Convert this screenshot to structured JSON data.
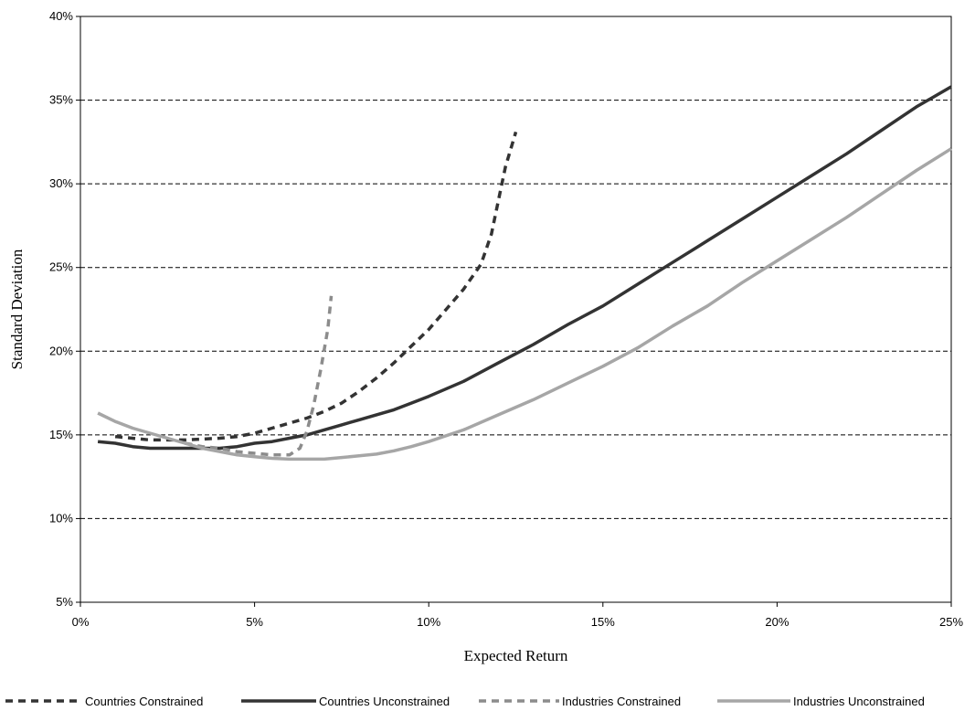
{
  "chart_data": {
    "type": "line",
    "title": "",
    "xlabel": "Expected Return",
    "ylabel": "Standard Deviation",
    "xlim": [
      0,
      25
    ],
    "ylim": [
      5,
      40
    ],
    "xticks": [
      0,
      5,
      10,
      15,
      20,
      25
    ],
    "yticks": [
      5,
      10,
      15,
      20,
      25,
      30,
      35,
      40
    ],
    "xtick_labels": [
      "0%",
      "5%",
      "10%",
      "15%",
      "20%",
      "25%"
    ],
    "ytick_labels": [
      "5%",
      "10%",
      "15%",
      "20%",
      "25%",
      "30%",
      "35%",
      "40%"
    ],
    "grid": "horizontal dashed",
    "legend_position": "bottom",
    "series": [
      {
        "name": "Countries Constrained",
        "color": "#333333",
        "dash": "dashed",
        "x": [
          1.0,
          2.0,
          3.0,
          4.0,
          4.5,
          5.0,
          5.5,
          6.0,
          6.5,
          7.0,
          7.5,
          8.0,
          8.5,
          9.0,
          9.5,
          10.0,
          10.5,
          11.0,
          11.5,
          11.8,
          12.0,
          12.2,
          12.5
        ],
        "values": [
          14.9,
          14.7,
          14.7,
          14.8,
          14.9,
          15.1,
          15.4,
          15.7,
          16.0,
          16.4,
          16.9,
          17.6,
          18.4,
          19.3,
          20.3,
          21.3,
          22.5,
          23.7,
          25.2,
          27.0,
          29.0,
          31.0,
          33.1
        ]
      },
      {
        "name": "Countries Unconstrained",
        "color": "#333333",
        "dash": "solid",
        "x": [
          0.5,
          1.0,
          1.5,
          2.0,
          2.5,
          3.0,
          3.5,
          4.0,
          4.5,
          5.0,
          5.5,
          6.0,
          6.5,
          7.0,
          7.5,
          8.0,
          8.5,
          9.0,
          9.5,
          10.0,
          11.0,
          12.0,
          13.0,
          14.0,
          15.0,
          16.0,
          17.0,
          18.0,
          19.0,
          20.0,
          21.0,
          22.0,
          23.0,
          24.0,
          25.0
        ],
        "values": [
          14.6,
          14.5,
          14.3,
          14.2,
          14.2,
          14.2,
          14.2,
          14.2,
          14.3,
          14.5,
          14.6,
          14.8,
          15.0,
          15.3,
          15.6,
          15.9,
          16.2,
          16.5,
          16.9,
          17.3,
          18.2,
          19.3,
          20.4,
          21.6,
          22.7,
          24.0,
          25.3,
          26.6,
          27.9,
          29.2,
          30.5,
          31.8,
          33.2,
          34.6,
          35.8
        ]
      },
      {
        "name": "Industries Constrained",
        "color": "#8c8c8c",
        "dash": "dashed",
        "x": [
          3.0,
          3.5,
          4.0,
          4.5,
          5.0,
          5.5,
          6.0,
          6.3,
          6.5,
          6.7,
          6.9,
          7.1,
          7.2
        ],
        "values": [
          14.5,
          14.3,
          14.2,
          14.0,
          13.9,
          13.8,
          13.8,
          14.2,
          15.2,
          16.8,
          18.9,
          21.3,
          23.3
        ]
      },
      {
        "name": "Industries Unconstrained",
        "color": "#a6a6a6",
        "dash": "solid",
        "x": [
          0.5,
          1.0,
          1.5,
          2.0,
          2.5,
          3.0,
          3.5,
          4.0,
          4.5,
          5.0,
          5.5,
          6.0,
          6.5,
          7.0,
          7.5,
          8.0,
          8.5,
          9.0,
          9.5,
          10.0,
          11.0,
          12.0,
          13.0,
          14.0,
          15.0,
          16.0,
          17.0,
          18.0,
          19.0,
          20.0,
          21.0,
          22.0,
          23.0,
          24.0,
          25.0
        ],
        "values": [
          16.3,
          15.8,
          15.4,
          15.1,
          14.8,
          14.5,
          14.2,
          14.0,
          13.8,
          13.7,
          13.6,
          13.55,
          13.55,
          13.55,
          13.65,
          13.75,
          13.85,
          14.05,
          14.3,
          14.6,
          15.3,
          16.2,
          17.1,
          18.1,
          19.1,
          20.2,
          21.5,
          22.7,
          24.1,
          25.4,
          26.7,
          28.0,
          29.4,
          30.8,
          32.1
        ]
      }
    ]
  }
}
